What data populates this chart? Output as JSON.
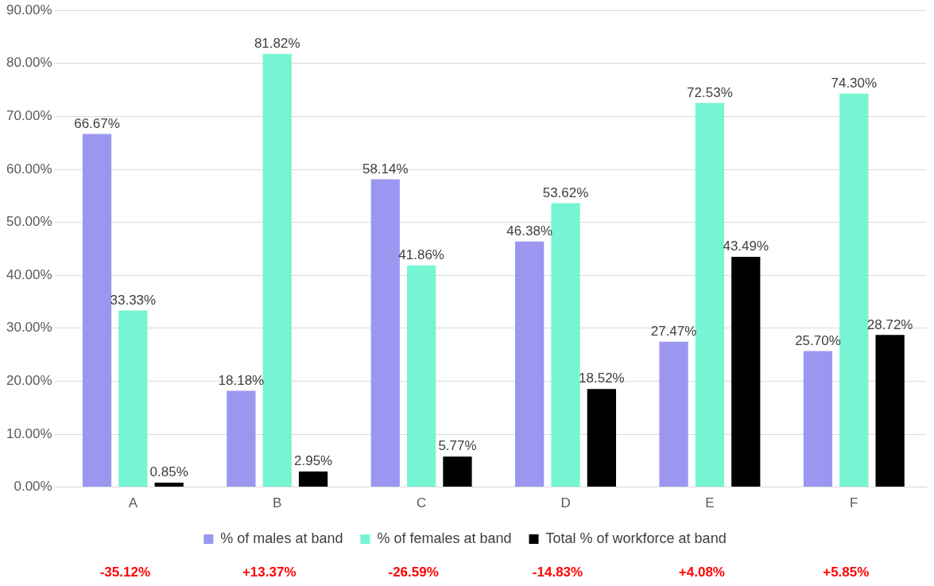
{
  "chart_data": {
    "type": "bar",
    "categories": [
      "A",
      "B",
      "C",
      "D",
      "E",
      "F"
    ],
    "series": [
      {
        "name": "% of males at band",
        "color": "#9b97f0",
        "values": [
          66.67,
          18.18,
          58.14,
          46.38,
          27.47,
          25.7
        ],
        "value_labels": [
          "66.67%",
          "18.18%",
          "58.14%",
          "46.38%",
          "27.47%",
          "25.70%"
        ]
      },
      {
        "name": "% of females at band",
        "color": "#76f5d3",
        "values": [
          33.33,
          81.82,
          41.86,
          53.62,
          72.53,
          74.3
        ],
        "value_labels": [
          "33.33%",
          "81.82%",
          "41.86%",
          "53.62%",
          "72.53%",
          "74.30%"
        ]
      },
      {
        "name": "Total % of workforce at band",
        "color": "#000000",
        "values": [
          0.85,
          2.95,
          5.77,
          18.52,
          43.49,
          28.72
        ],
        "value_labels": [
          "0.85%",
          "2.95%",
          "5.77%",
          "18.52%",
          "43.49%",
          "28.72%"
        ]
      }
    ],
    "ylim": [
      0,
      90
    ],
    "yticks": [
      {
        "value": 0,
        "label": "0.00%"
      },
      {
        "value": 10,
        "label": "10.00%"
      },
      {
        "value": 20,
        "label": "20.00%"
      },
      {
        "value": 30,
        "label": "30.00%"
      },
      {
        "value": 40,
        "label": "40.00%"
      },
      {
        "value": 50,
        "label": "50.00%"
      },
      {
        "value": 60,
        "label": "60.00%"
      },
      {
        "value": 70,
        "label": "70.00%"
      },
      {
        "value": 80,
        "label": "80.00%"
      },
      {
        "value": 90,
        "label": "90.00%"
      }
    ],
    "grid": "y",
    "legend": "bottom",
    "annotations": [
      "-35.12%",
      "+13.37%",
      "-26.59%",
      "-14.83%",
      "+4.08%",
      "+5.85%"
    ]
  }
}
